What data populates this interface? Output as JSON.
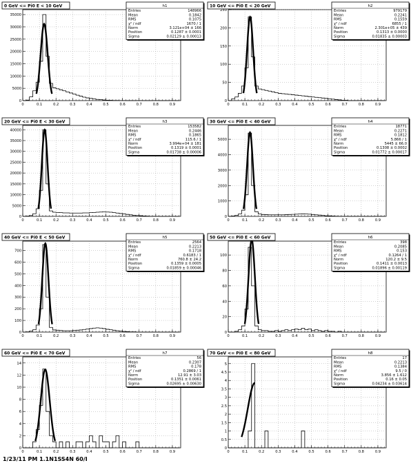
{
  "footer_text": "1/23/11 PM 1.1N1SS4N 60/I",
  "chart_data": [
    {
      "type": "bar",
      "hist": "h1",
      "title": "0 GeV <= Pi0 E < 10 GeV",
      "ylim": [
        0,
        37000
      ],
      "yticks": [
        0,
        5000,
        10000,
        15000,
        20000,
        25000,
        30000,
        35000
      ],
      "xlim": [
        0,
        0.95
      ],
      "xticks": [
        "0",
        "0.1",
        "0.2",
        "0.3",
        "0.4",
        "0.5",
        "0.6",
        "0.7",
        "0.8",
        "0.9"
      ],
      "grid": true,
      "fit_color": "#000000",
      "stats": [
        {
          "label": "Entries",
          "value": "148966"
        },
        {
          "label": "Mean",
          "value": "0.1842"
        },
        {
          "label": "RMS",
          "value": "0.1075"
        },
        {
          "label": "χ² / ndf",
          "value": "1670 / 1"
        },
        {
          "label": "Norm",
          "value": "3.121e+04 ± 166"
        },
        {
          "label": "Position",
          "value": "0.1287 ± 0.0001"
        },
        {
          "label": "Sigma",
          "value": "0.02129 ± 0.00013"
        }
      ],
      "exponent": "",
      "bins_x0": 0.0,
      "bin_width": 0.02,
      "values": [
        0,
        200,
        1500,
        4000,
        7500,
        16000,
        35000,
        18000,
        7000,
        5200,
        4800,
        4400,
        4000,
        3500,
        3100,
        2700,
        2200,
        1800,
        1400,
        1100,
        900,
        700,
        500,
        380,
        260,
        180,
        120,
        80,
        60,
        40,
        30,
        20,
        15,
        10,
        8,
        5,
        3,
        2,
        1,
        0,
        0,
        0,
        0,
        0,
        0,
        0,
        0
      ],
      "fit": {
        "norm": 31210,
        "mu": 0.1287,
        "sigma": 0.02129
      }
    },
    {
      "type": "bar",
      "hist": "h2",
      "title": "10 GeV <= Pi0 E < 20 GeV",
      "ylim": [
        0,
        250
      ],
      "yticks": [
        0,
        50,
        100,
        150,
        200,
        250
      ],
      "xlim": [
        0,
        0.95
      ],
      "xticks": [
        "0",
        "0.1",
        "0.2",
        "0.3",
        "0.4",
        "0.5",
        "0.6",
        "0.7",
        "0.8",
        "0.9"
      ],
      "grid": true,
      "stats": [
        {
          "label": "Entries",
          "value": "979179"
        },
        {
          "label": "Mean",
          "value": "0.2241"
        },
        {
          "label": "RMS",
          "value": "0.1559"
        },
        {
          "label": "χ² / ndf",
          "value": "6855 / 1"
        },
        {
          "label": "Norm",
          "value": "2.301e+05 ± 439"
        },
        {
          "label": "Position",
          "value": "0.1313 ± 0.0000"
        },
        {
          "label": "Sigma",
          "value": "0.01835 ± 0.00003"
        }
      ],
      "exponent": "×10³",
      "bins_x0": 0.0,
      "bin_width": 0.02,
      "values": [
        0,
        5,
        10,
        20,
        40,
        90,
        230,
        120,
        40,
        32,
        30,
        28,
        26,
        24,
        22,
        20,
        19,
        18,
        17,
        16,
        15,
        14,
        13,
        12,
        11,
        10,
        9,
        8,
        7,
        6,
        5,
        4,
        3,
        2,
        1,
        1,
        0,
        0,
        0,
        0,
        0,
        0,
        0,
        0,
        0,
        0,
        0
      ],
      "fit": {
        "norm": 230,
        "mu": 0.1313,
        "sigma": 0.01835
      }
    },
    {
      "type": "bar",
      "hist": "h3",
      "title": "20 GeV <= Pi0 E < 30 GeV",
      "ylim": [
        0,
        42000
      ],
      "yticks": [
        0,
        5000,
        10000,
        15000,
        20000,
        25000,
        30000,
        35000,
        40000
      ],
      "xlim": [
        0,
        0.95
      ],
      "xticks": [
        "0",
        "0.1",
        "0.2",
        "0.3",
        "0.4",
        "0.5",
        "0.6",
        "0.7",
        "0.8",
        "0.9"
      ],
      "grid": true,
      "stats": [
        {
          "label": "Entries",
          "value": "153582"
        },
        {
          "label": "Mean",
          "value": "0.2446"
        },
        {
          "label": "RMS",
          "value": "0.1865"
        },
        {
          "label": "χ² / ndf",
          "value": "115.6 / 1"
        },
        {
          "label": "Norm",
          "value": "3.994e+04 ± 181"
        },
        {
          "label": "Position",
          "value": "0.1319 ± 0.0001"
        },
        {
          "label": "Sigma",
          "value": "0.01738 ± 0.00006"
        }
      ],
      "exponent": "",
      "bins_x0": 0.0,
      "bin_width": 0.02,
      "values": [
        0,
        100,
        400,
        1200,
        3500,
        12000,
        40000,
        15000,
        2500,
        1900,
        1800,
        1700,
        1600,
        1600,
        1500,
        1500,
        1500,
        1500,
        1600,
        1600,
        1700,
        1800,
        1900,
        2000,
        2100,
        2000,
        1900,
        1700,
        1500,
        1300,
        1100,
        900,
        700,
        500,
        400,
        300,
        200,
        100,
        50,
        20,
        0,
        0,
        0,
        0,
        0,
        0,
        0
      ],
      "fit": {
        "norm": 39940,
        "mu": 0.1319,
        "sigma": 0.01738
      }
    },
    {
      "type": "bar",
      "hist": "h4",
      "title": "30 GeV <= Pi0 E < 40 GeV",
      "ylim": [
        0,
        5900
      ],
      "yticks": [
        0,
        1000,
        2000,
        3000,
        4000,
        5000
      ],
      "xlim": [
        0,
        0.95
      ],
      "xticks": [
        "0",
        "0.1",
        "0.2",
        "0.3",
        "0.4",
        "0.5",
        "0.6",
        "0.7",
        "0.8",
        "0.9"
      ],
      "grid": true,
      "stats": [
        {
          "label": "Entries",
          "value": "18771"
        },
        {
          "label": "Mean",
          "value": "0.2271"
        },
        {
          "label": "RMS",
          "value": "0.1812"
        },
        {
          "label": "χ² / ndf",
          "value": "5.866 / 1"
        },
        {
          "label": "Norm",
          "value": "5445 ± 66.0"
        },
        {
          "label": "Position",
          "value": "0.1308 ± 0.0002"
        },
        {
          "label": "Sigma",
          "value": "0.01772 ± 0.00017"
        }
      ],
      "exponent": "",
      "bins_x0": 0.0,
      "bin_width": 0.02,
      "values": [
        0,
        20,
        60,
        150,
        400,
        1400,
        5400,
        2000,
        300,
        150,
        120,
        110,
        100,
        100,
        100,
        100,
        100,
        110,
        120,
        130,
        140,
        150,
        160,
        150,
        140,
        120,
        100,
        80,
        60,
        40,
        30,
        20,
        10,
        5,
        0,
        0,
        0,
        0,
        0,
        0,
        0,
        0,
        0,
        0,
        0,
        0,
        0
      ],
      "fit": {
        "norm": 5445,
        "mu": 0.1308,
        "sigma": 0.01772
      }
    },
    {
      "type": "bar",
      "hist": "h5",
      "title": "40 GeV <= Pi0 E < 50 GeV",
      "ylim": [
        0,
        780
      ],
      "yticks": [
        0,
        100,
        200,
        300,
        400,
        500,
        600,
        700
      ],
      "xlim": [
        0,
        0.95
      ],
      "xticks": [
        "0",
        "0.1",
        "0.2",
        "0.3",
        "0.4",
        "0.5",
        "0.6",
        "0.7",
        "0.8",
        "0.9"
      ],
      "grid": true,
      "stats": [
        {
          "label": "Entries",
          "value": "2564"
        },
        {
          "label": "Mean",
          "value": "0.2213"
        },
        {
          "label": "RMS",
          "value": "0.1718"
        },
        {
          "label": "χ² / ndf",
          "value": "0.6183 / 1"
        },
        {
          "label": "Norm",
          "value": "760.8 ± 24.2"
        },
        {
          "label": "Position",
          "value": "0.1359 ± 0.0005"
        },
        {
          "label": "Sigma",
          "value": "0.01859 ± 0.00046"
        }
      ],
      "exponent": "",
      "bins_x0": 0.0,
      "bin_width": 0.02,
      "values": [
        0,
        2,
        8,
        20,
        60,
        200,
        750,
        300,
        40,
        18,
        16,
        14,
        12,
        12,
        12,
        14,
        16,
        18,
        22,
        26,
        30,
        34,
        36,
        34,
        30,
        24,
        20,
        16,
        12,
        8,
        6,
        4,
        2,
        2,
        0,
        0,
        0,
        0,
        0,
        0,
        0,
        0,
        0,
        0,
        0,
        0,
        0
      ],
      "fit": {
        "norm": 760.8,
        "mu": 0.1359,
        "sigma": 0.01859
      }
    },
    {
      "type": "bar",
      "hist": "h6",
      "title": "50 GeV <= Pi0 E < 60 GeV",
      "ylim": [
        0,
        118
      ],
      "yticks": [
        0,
        20,
        40,
        60,
        80,
        100
      ],
      "xlim": [
        0,
        0.95
      ],
      "xticks": [
        "0",
        "0.1",
        "0.2",
        "0.3",
        "0.4",
        "0.5",
        "0.6",
        "0.7",
        "0.8",
        "0.9"
      ],
      "grid": true,
      "stats": [
        {
          "label": "Entries",
          "value": "398"
        },
        {
          "label": "Mean",
          "value": "0.2085"
        },
        {
          "label": "RMS",
          "value": "0.153"
        },
        {
          "label": "χ² / ndf",
          "value": "0.1264 / 1"
        },
        {
          "label": "Norm",
          "value": "120.2 ± 9.5"
        },
        {
          "label": "Position",
          "value": "0.1411 ± 0.0013"
        },
        {
          "label": "Sigma",
          "value": "0.01896 ± 0.00119"
        }
      ],
      "exponent": "",
      "bins_x0": 0.0,
      "bin_width": 0.02,
      "values": [
        0,
        0,
        1,
        3,
        8,
        30,
        110,
        60,
        8,
        3,
        2,
        2,
        1,
        1,
        2,
        1,
        2,
        3,
        2,
        3,
        4,
        3,
        5,
        3,
        4,
        2,
        3,
        2,
        1,
        2,
        1,
        1,
        0,
        1,
        0,
        0,
        0,
        0,
        0,
        0,
        0,
        0,
        0,
        0,
        0,
        0,
        0
      ],
      "fit": {
        "norm": 120.2,
        "mu": 0.1411,
        "sigma": 0.01896
      }
    },
    {
      "type": "bar",
      "hist": "h7",
      "title": "60 GeV <= Pi0 E < 70 GeV",
      "ylim": [
        0,
        15
      ],
      "yticks": [
        0,
        2,
        4,
        6,
        8,
        10,
        12,
        14
      ],
      "xlim": [
        0,
        0.95
      ],
      "xticks": [
        "0",
        "0.1",
        "0.2",
        "0.3",
        "0.4",
        "0.5",
        "0.6",
        "0.7",
        "0.8",
        "0.9"
      ],
      "grid": true,
      "stats": [
        {
          "label": "Entries",
          "value": "56"
        },
        {
          "label": "Mean",
          "value": "0.2307"
        },
        {
          "label": "RMS",
          "value": "0.178"
        },
        {
          "label": "χ² / ndf",
          "value": "0.2869 / 1"
        },
        {
          "label": "Norm",
          "value": "12.91 ± 3.03"
        },
        {
          "label": "Position",
          "value": "0.1351 ± 0.0061"
        },
        {
          "label": "Sigma",
          "value": "0.02695 ± 0.00630"
        }
      ],
      "exponent": "",
      "bins_x0": 0.0,
      "bin_width": 0.02,
      "values": [
        0,
        0,
        0,
        1,
        3,
        7,
        13,
        6,
        2,
        1,
        0,
        1,
        0,
        1,
        0,
        0,
        1,
        1,
        0,
        1,
        2,
        1,
        0,
        2,
        1,
        1,
        0,
        1,
        2,
        0,
        1,
        0,
        0,
        0,
        1,
        0,
        0,
        0,
        0,
        0,
        0,
        0,
        0,
        0,
        0,
        0,
        0
      ],
      "fit": {
        "norm": 12.91,
        "mu": 0.1351,
        "sigma": 0.02695
      }
    },
    {
      "type": "bar",
      "hist": "h8",
      "title": "70 GeV <= Pi0 E < 80 GeV",
      "ylim": [
        0,
        5.4
      ],
      "yticks": [
        0,
        0.5,
        1,
        1.5,
        2,
        2.5,
        3,
        3.5,
        4,
        4.5,
        5
      ],
      "xlim": [
        0,
        0.95
      ],
      "xticks": [
        "0",
        "0.1",
        "0.2",
        "0.3",
        "0.4",
        "0.5",
        "0.6",
        "0.7",
        "0.8",
        "0.9"
      ],
      "grid": true,
      "stats": [
        {
          "label": "Entries",
          "value": "17"
        },
        {
          "label": "Mean",
          "value": "0.2213"
        },
        {
          "label": "RMS",
          "value": "0.1384"
        },
        {
          "label": "χ² / ndf",
          "value": "9.5 / 0"
        },
        {
          "label": "Norm",
          "value": "3.856 ± 1.612"
        },
        {
          "label": "Position",
          "value": "0.16 ± 0.05"
        },
        {
          "label": "Sigma",
          "value": "0.04234 ± 0.03614"
        }
      ],
      "exponent": "",
      "bins_x0": 0.0,
      "bin_width": 0.02,
      "values": [
        0,
        0,
        0,
        0,
        0,
        0,
        1,
        5,
        0,
        0,
        0,
        1,
        0,
        0,
        0,
        0,
        0,
        0,
        0,
        0,
        0,
        0,
        1,
        0,
        0,
        0,
        0,
        0,
        0,
        0,
        0,
        0,
        0,
        0,
        0,
        0,
        0,
        0,
        0,
        0,
        0,
        0,
        0,
        0,
        0,
        0,
        0
      ],
      "fit": {
        "norm": 3.856,
        "mu": 0.16,
        "sigma": 0.04234,
        "range": [
          0.08,
          0.16
        ]
      }
    }
  ]
}
